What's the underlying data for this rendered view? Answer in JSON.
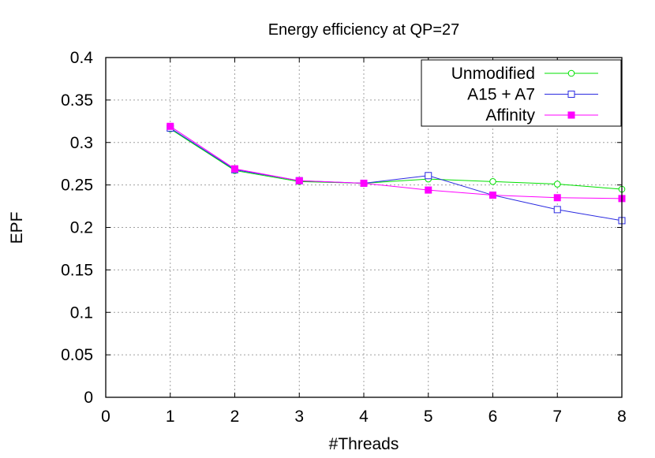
{
  "chart_data": {
    "type": "line",
    "title": "Energy efficiency at QP=27",
    "xlabel": "#Threads",
    "ylabel": "EPF",
    "xlim": [
      0,
      8
    ],
    "ylim": [
      0,
      0.4
    ],
    "xticks": [
      "0",
      "1",
      "2",
      "3",
      "4",
      "5",
      "6",
      "7",
      "8"
    ],
    "yticks": [
      "0",
      "0.05",
      "0.1",
      "0.15",
      "0.2",
      "0.25",
      "0.3",
      "0.35",
      "0.4"
    ],
    "grid": true,
    "legend_position": "top-right",
    "x": [
      1,
      2,
      3,
      4,
      5,
      6,
      7,
      8
    ],
    "series": [
      {
        "name": "Unmodified",
        "color": "#00e000",
        "marker": "open-circle",
        "values": [
          0.316,
          0.267,
          0.254,
          0.252,
          0.257,
          0.254,
          0.251,
          0.245
        ]
      },
      {
        "name": "A15 + A7",
        "color": "#2a2ae0",
        "marker": "open-square",
        "values": [
          0.317,
          0.268,
          0.255,
          0.252,
          0.261,
          0.238,
          0.221,
          0.208
        ]
      },
      {
        "name": "Affinity",
        "color": "#ff00ff",
        "marker": "filled-square",
        "values": [
          0.319,
          0.269,
          0.255,
          0.252,
          0.244,
          0.238,
          0.235,
          0.234
        ]
      }
    ]
  }
}
